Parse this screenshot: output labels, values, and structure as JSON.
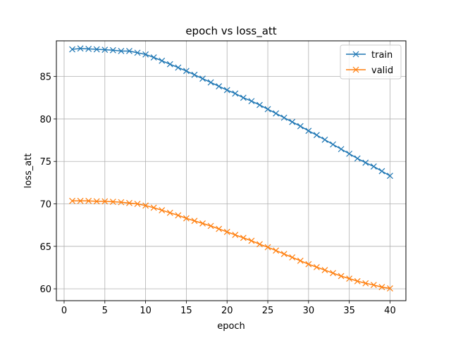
{
  "chart_data": {
    "type": "line",
    "title": "epoch vs loss_att",
    "xlabel": "epoch",
    "ylabel": "loss_att",
    "xlim": [
      -0.95,
      41.95
    ],
    "ylim": [
      58.6,
      89.2
    ],
    "xticks": [
      0,
      5,
      10,
      15,
      20,
      25,
      30,
      35,
      40
    ],
    "yticks": [
      60,
      65,
      70,
      75,
      80,
      85
    ],
    "grid": true,
    "legend_position": "top-right",
    "x": [
      1,
      2,
      3,
      4,
      5,
      6,
      7,
      8,
      9,
      10,
      11,
      12,
      13,
      14,
      15,
      16,
      17,
      18,
      19,
      20,
      21,
      22,
      23,
      24,
      25,
      26,
      27,
      28,
      29,
      30,
      31,
      32,
      33,
      34,
      35,
      36,
      37,
      38,
      39,
      40
    ],
    "series": [
      {
        "name": "train",
        "color": "#1f77b4",
        "marker": "x",
        "values": [
          88.2,
          88.3,
          88.25,
          88.2,
          88.15,
          88.1,
          88.0,
          88.0,
          87.8,
          87.6,
          87.25,
          86.85,
          86.45,
          86.05,
          85.65,
          85.2,
          84.75,
          84.3,
          83.85,
          83.4,
          83.0,
          82.5,
          82.1,
          81.65,
          81.15,
          80.65,
          80.15,
          79.65,
          79.15,
          78.6,
          78.1,
          77.55,
          77.0,
          76.45,
          75.9,
          75.35,
          74.85,
          74.4,
          73.85,
          73.3
        ]
      },
      {
        "name": "valid",
        "color": "#ff7f0e",
        "marker": "x",
        "values": [
          70.35,
          70.35,
          70.35,
          70.3,
          70.3,
          70.25,
          70.2,
          70.1,
          70.0,
          69.8,
          69.55,
          69.25,
          68.95,
          68.65,
          68.3,
          68.0,
          67.7,
          67.4,
          67.05,
          66.7,
          66.35,
          66.0,
          65.65,
          65.25,
          64.9,
          64.5,
          64.1,
          63.7,
          63.3,
          62.9,
          62.55,
          62.2,
          61.85,
          61.5,
          61.2,
          60.9,
          60.65,
          60.45,
          60.2,
          60.05
        ]
      }
    ]
  }
}
